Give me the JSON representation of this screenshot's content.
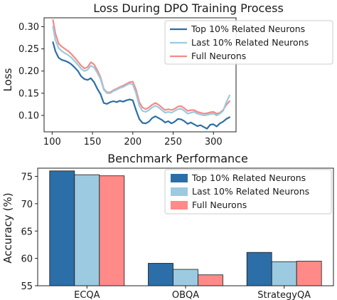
{
  "chart_data": [
    {
      "type": "line",
      "title": "Loss During DPO Training Process",
      "xlabel": "",
      "ylabel": "Loss",
      "xlim": [
        90,
        328
      ],
      "ylim": [
        0.063,
        0.32
      ],
      "xticks": [
        100,
        150,
        200,
        250,
        300
      ],
      "yticks": [
        0.1,
        0.15,
        0.2,
        0.25,
        0.3
      ],
      "xtick_labels": [
        "100",
        "150",
        "200",
        "250",
        "300"
      ],
      "ytick_labels": [
        "0.10",
        "0.15",
        "0.20",
        "0.25",
        "0.30"
      ],
      "legend_position": "top-right",
      "grid": false,
      "x": [
        101,
        104,
        108,
        112,
        116,
        120,
        124,
        128,
        132,
        136,
        140,
        144,
        148,
        152,
        156,
        160,
        164,
        168,
        172,
        176,
        180,
        184,
        188,
        192,
        196,
        200,
        204,
        208,
        212,
        216,
        220,
        224,
        228,
        232,
        236,
        240,
        244,
        248,
        252,
        256,
        260,
        264,
        268,
        272,
        276,
        280,
        284,
        288,
        292,
        296,
        300,
        304,
        308,
        312,
        316,
        320
      ],
      "series": [
        {
          "name": "Top 10% Related Neurons",
          "color": "#2b6ea8",
          "values": [
            0.265,
            0.245,
            0.23,
            0.225,
            0.223,
            0.22,
            0.215,
            0.208,
            0.2,
            0.188,
            0.182,
            0.18,
            0.184,
            0.175,
            0.16,
            0.148,
            0.128,
            0.126,
            0.13,
            0.132,
            0.13,
            0.133,
            0.131,
            0.134,
            0.136,
            0.134,
            0.112,
            0.092,
            0.083,
            0.082,
            0.086,
            0.094,
            0.098,
            0.094,
            0.09,
            0.084,
            0.087,
            0.082,
            0.086,
            0.092,
            0.091,
            0.087,
            0.081,
            0.084,
            0.08,
            0.076,
            0.078,
            0.074,
            0.07,
            0.079,
            0.08,
            0.075,
            0.082,
            0.086,
            0.092,
            0.096
          ]
        },
        {
          "name": "Last 10% Related Neurons",
          "color": "#9ccae0",
          "values": [
            0.3,
            0.27,
            0.252,
            0.245,
            0.24,
            0.236,
            0.23,
            0.222,
            0.214,
            0.205,
            0.2,
            0.203,
            0.212,
            0.208,
            0.196,
            0.182,
            0.158,
            0.15,
            0.15,
            0.155,
            0.158,
            0.162,
            0.164,
            0.168,
            0.172,
            0.17,
            0.15,
            0.122,
            0.11,
            0.108,
            0.112,
            0.118,
            0.122,
            0.118,
            0.112,
            0.106,
            0.108,
            0.106,
            0.11,
            0.114,
            0.115,
            0.11,
            0.104,
            0.106,
            0.108,
            0.104,
            0.102,
            0.1,
            0.101,
            0.103,
            0.104,
            0.1,
            0.104,
            0.11,
            0.13,
            0.145
          ]
        },
        {
          "name": "Full Neurons",
          "color": "#f28b87",
          "values": [
            0.315,
            0.285,
            0.262,
            0.255,
            0.25,
            0.245,
            0.238,
            0.23,
            0.221,
            0.212,
            0.206,
            0.209,
            0.22,
            0.215,
            0.202,
            0.186,
            0.16,
            0.152,
            0.152,
            0.157,
            0.16,
            0.164,
            0.167,
            0.171,
            0.175,
            0.176,
            0.158,
            0.13,
            0.118,
            0.114,
            0.118,
            0.124,
            0.128,
            0.124,
            0.118,
            0.112,
            0.114,
            0.112,
            0.115,
            0.12,
            0.121,
            0.116,
            0.11,
            0.112,
            0.112,
            0.108,
            0.106,
            0.104,
            0.105,
            0.107,
            0.108,
            0.104,
            0.106,
            0.112,
            0.124,
            0.132
          ]
        }
      ]
    },
    {
      "type": "bar",
      "title": "Benchmark Performance",
      "xlabel": "",
      "ylabel": "Accuracy (%)",
      "ylim": [
        55,
        76.5
      ],
      "yticks": [
        55,
        60,
        65,
        70,
        75
      ],
      "ytick_labels": [
        "55",
        "60",
        "65",
        "70",
        "75"
      ],
      "categories": [
        "ECQA",
        "OBQA",
        "StrategyQA"
      ],
      "legend_position": "top-right",
      "grid": false,
      "series": [
        {
          "name": "Top 10% Related Neurons",
          "color": "#2b6ea8",
          "values": [
            76.0,
            59.1,
            61.1
          ]
        },
        {
          "name": "Last 10% Related Neurons",
          "color": "#9ccae0",
          "values": [
            75.3,
            58.0,
            59.4
          ]
        },
        {
          "name": "Full Neurons",
          "color": "#ff8a87",
          "values": [
            75.1,
            57.0,
            59.5
          ]
        }
      ]
    }
  ]
}
